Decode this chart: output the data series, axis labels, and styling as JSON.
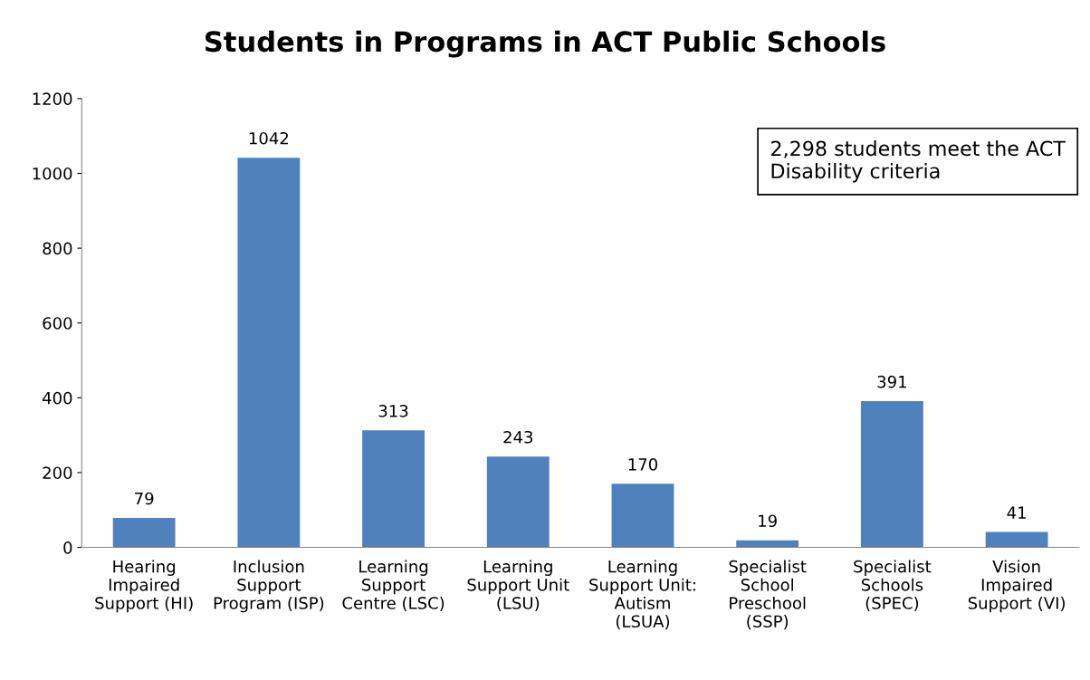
{
  "chart_data": {
    "type": "bar",
    "title": "Students in Programs in ACT Public Schools",
    "categories": [
      "Hearing\nImpaired\nSupport (HI)",
      "Inclusion\nSupport\nProgram (ISP)",
      "Learning\nSupport\nCentre (LSC)",
      "Learning\nSupport Unit\n(LSU)",
      "Learning\nSupport Unit:\nAutism\n(LSUA)",
      "Specialist\nSchool\nPreschool\n(SSP)",
      "Specialist\nSchools\n(SPEC)",
      "Vision\nImpaired\nSupport (VI)"
    ],
    "values": [
      79,
      1042,
      313,
      243,
      170,
      19,
      391,
      41
    ],
    "color": "#4f81bd",
    "ylim": [
      0,
      1200
    ],
    "yticks": [
      0,
      200,
      400,
      600,
      800,
      1000,
      1200
    ],
    "data_labels": true,
    "grid": false,
    "legend": false,
    "annotations": [
      "2,298 students meet the ACT\nDisability criteria"
    ]
  }
}
